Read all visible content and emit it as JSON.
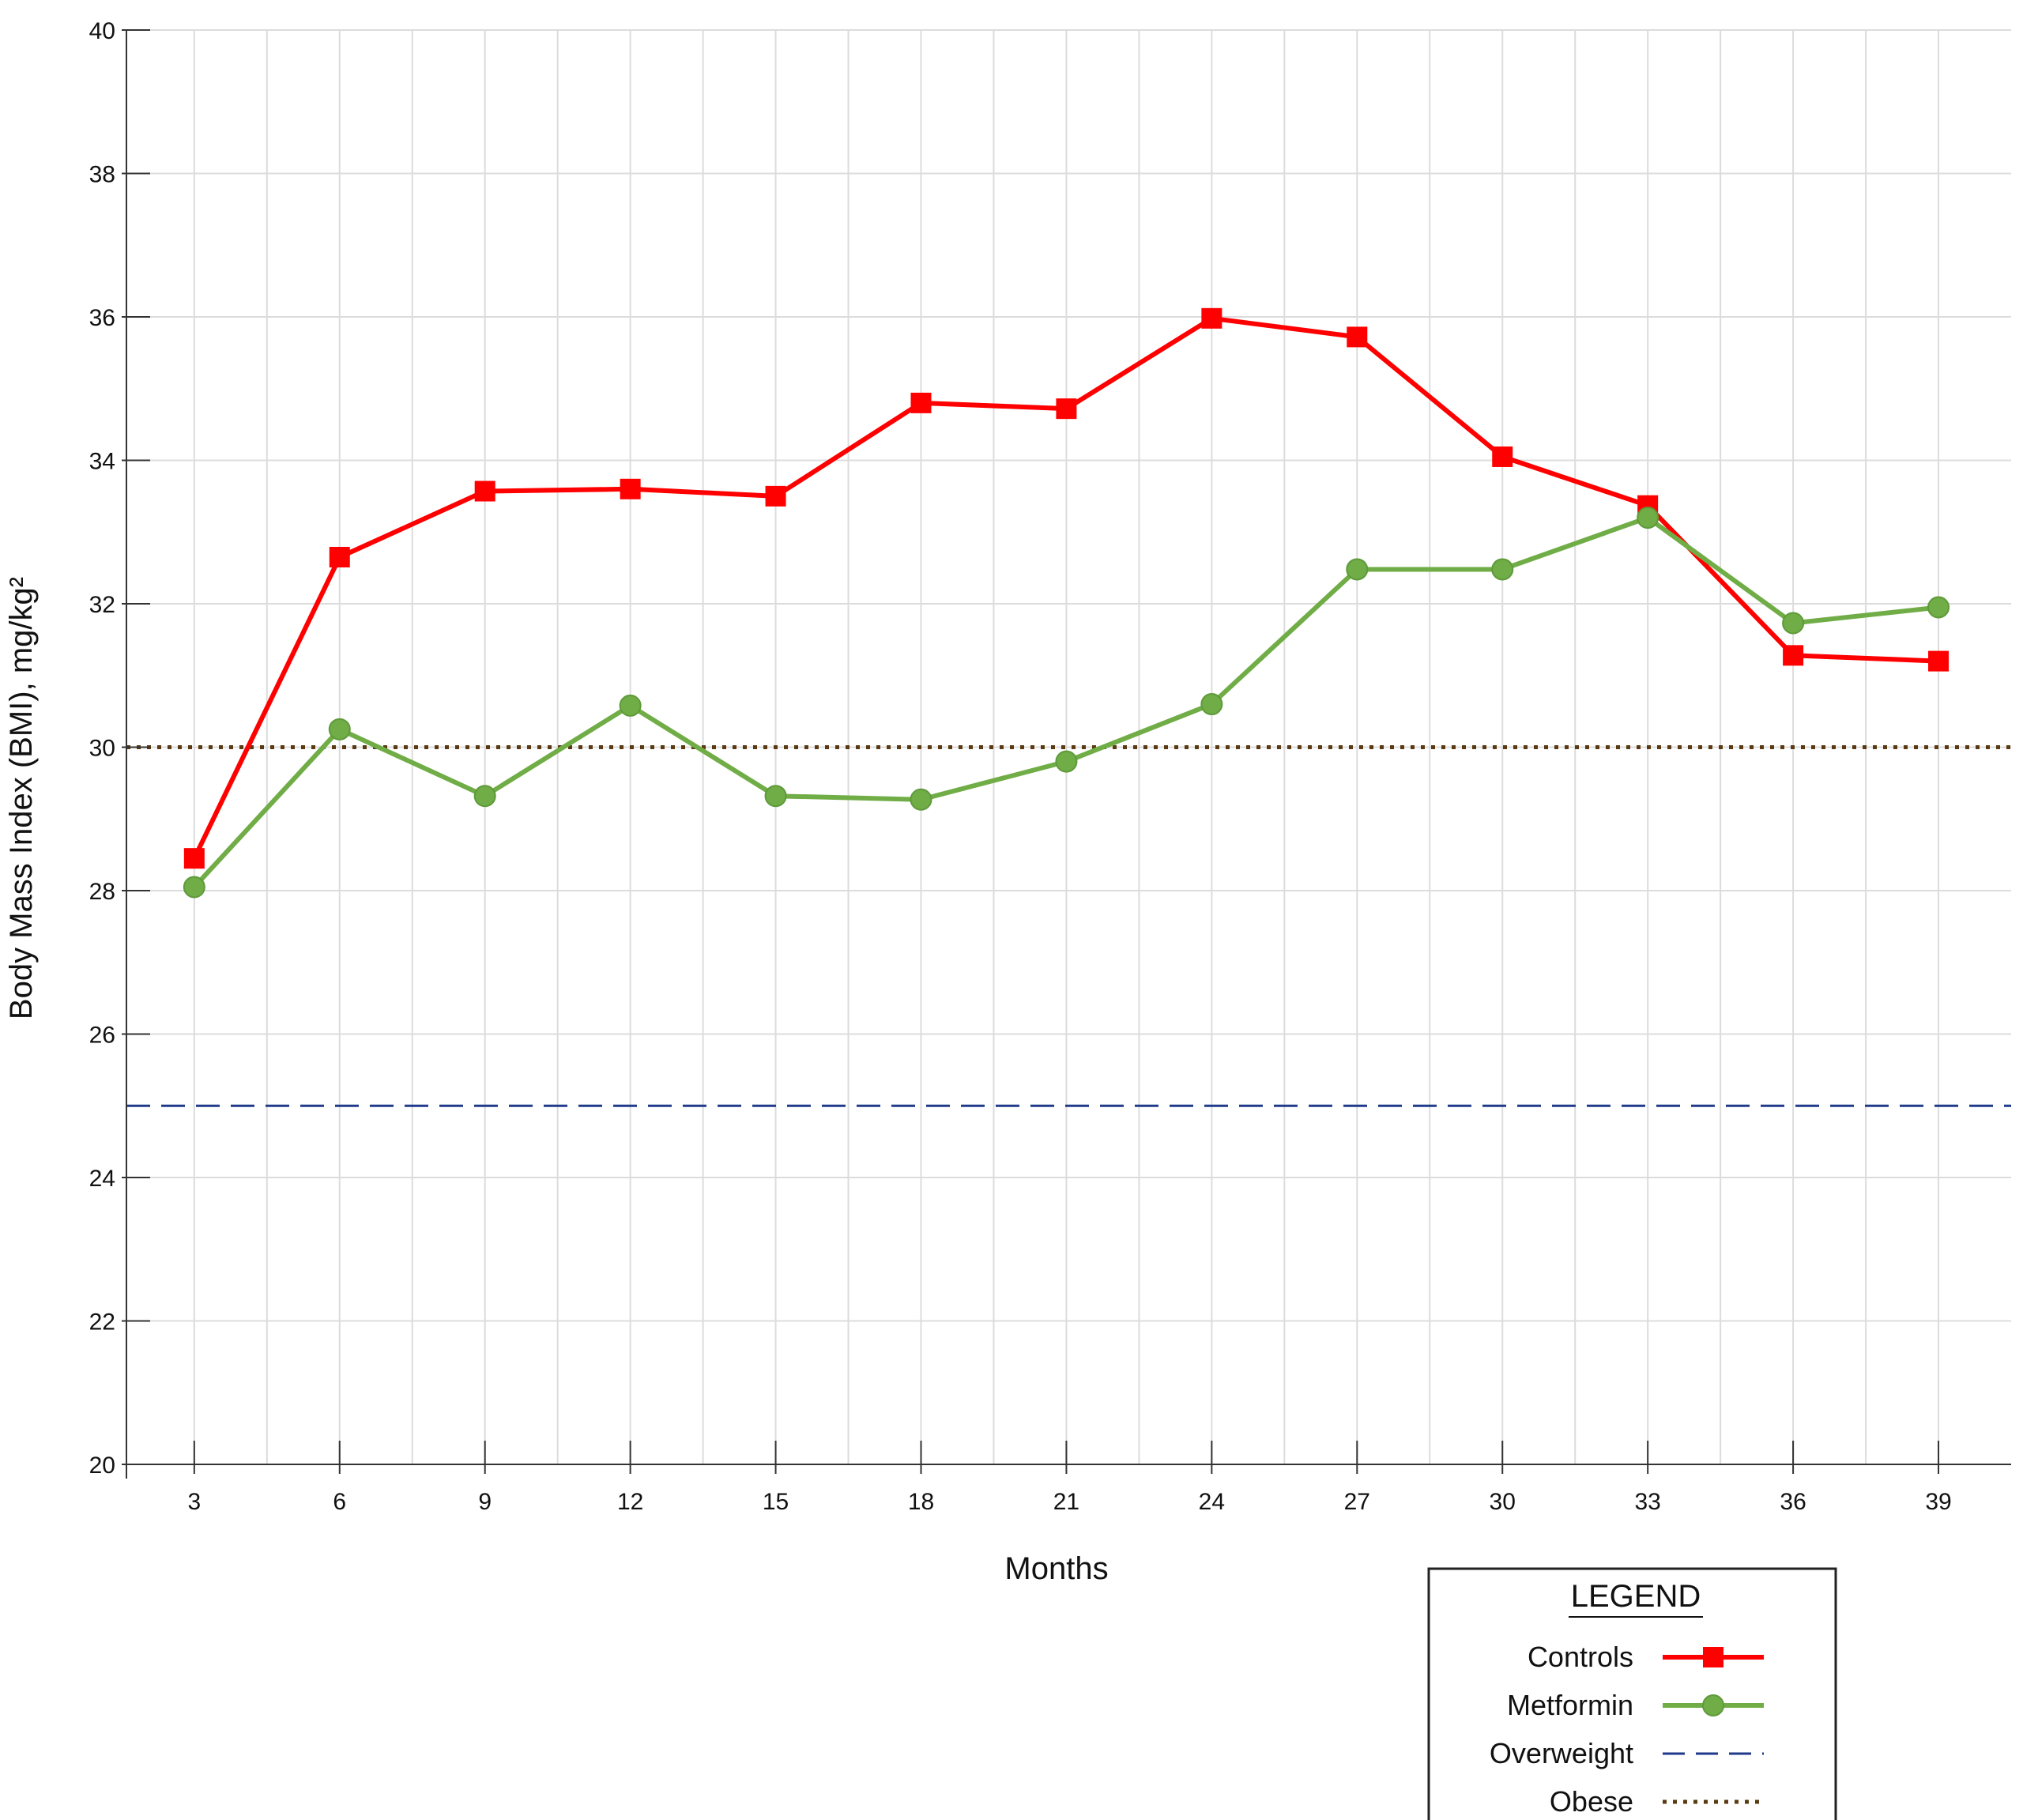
{
  "chart_data": {
    "type": "line",
    "title": "",
    "xlabel": "Months",
    "ylabel": "Body Mass Index (BMI), mg/kg²",
    "x": [
      3,
      6,
      9,
      12,
      15,
      18,
      21,
      24,
      27,
      30,
      33,
      36,
      39
    ],
    "xlim": [
      1.6,
      40.5
    ],
    "ylim": [
      20,
      40
    ],
    "x_ticks": [
      3,
      6,
      9,
      12,
      15,
      18,
      21,
      24,
      27,
      30,
      33,
      36,
      39
    ],
    "y_ticks": [
      20,
      22,
      24,
      26,
      28,
      30,
      32,
      34,
      36,
      38,
      40
    ],
    "grid": true,
    "series": [
      {
        "name": "Controls",
        "color": "#ff0000",
        "marker": "square",
        "values": [
          28.45,
          32.65,
          33.57,
          33.6,
          33.5,
          34.8,
          34.72,
          35.98,
          35.72,
          34.05,
          33.37,
          31.28,
          31.2
        ]
      },
      {
        "name": "Metformin",
        "color": "#70ad47",
        "marker": "circle",
        "values": [
          28.05,
          30.25,
          29.32,
          30.58,
          29.32,
          29.27,
          29.8,
          30.6,
          32.48,
          32.48,
          33.2,
          31.73,
          31.95
        ]
      }
    ],
    "reference_lines": [
      {
        "name": "Overweight",
        "y": 25,
        "color": "#1f3a8a",
        "style": "dashed"
      },
      {
        "name": "Obese",
        "y": 30,
        "color": "#5a3a12",
        "style": "dotted"
      }
    ],
    "legend": {
      "title": "LEGEND",
      "placement": "bottom-right",
      "entries": [
        "Controls",
        "Metformin",
        "Overweight",
        "Obese"
      ]
    }
  }
}
